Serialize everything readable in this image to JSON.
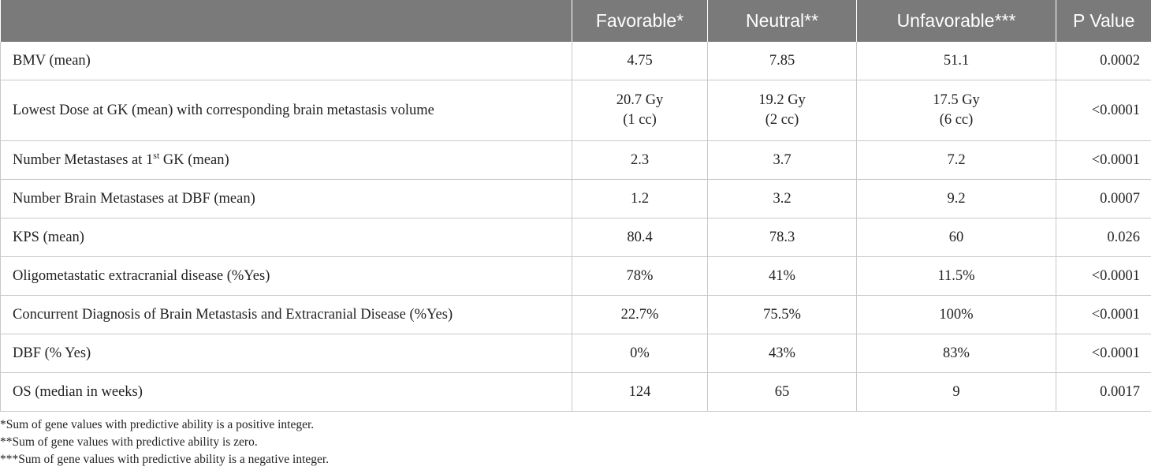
{
  "headers": [
    "",
    "Favorable*",
    "Neutral**",
    "Unfavorable***",
    "P Value"
  ],
  "rows": [
    {
      "label": "BMV (mean)",
      "favorable": "4.75",
      "neutral": "7.85",
      "unfavorable": "51.1",
      "p": "0.0002"
    },
    {
      "label": "Lowest Dose at GK (mean) with corresponding brain metastasis volume",
      "favorable": "20.7 Gy",
      "favorable_sub": "(1 cc)",
      "neutral": "19.2 Gy",
      "neutral_sub": "(2 cc)",
      "unfavorable": "17.5 Gy",
      "unfavorable_sub": "(6 cc)",
      "p": "<0.0001"
    },
    {
      "label_pre": "Number Metastases at 1",
      "label_sup": "st",
      "label_post": " GK (mean)",
      "favorable": "2.3",
      "neutral": "3.7",
      "unfavorable": "7.2",
      "p": "<0.0001"
    },
    {
      "label": "Number Brain Metastases at DBF (mean)",
      "favorable": "1.2",
      "neutral": "3.2",
      "unfavorable": "9.2",
      "p": "0.0007"
    },
    {
      "label": "KPS (mean)",
      "favorable": "80.4",
      "neutral": "78.3",
      "unfavorable": "60",
      "p": "0.026"
    },
    {
      "label": "Oligometastatic extracranial disease (%Yes)",
      "favorable": "78%",
      "neutral": "41%",
      "unfavorable": "11.5%",
      "p": "<0.0001"
    },
    {
      "label": "Concurrent Diagnosis of Brain Metastasis and Extracranial Disease (%Yes)",
      "favorable": "22.7%",
      "neutral": "75.5%",
      "unfavorable": "100%",
      "p": "<0.0001"
    },
    {
      "label": "DBF (% Yes)",
      "favorable": "0%",
      "neutral": "43%",
      "unfavorable": "83%",
      "p": "<0.0001"
    },
    {
      "label": "OS (median in weeks)",
      "favorable": "124",
      "neutral": "65",
      "unfavorable": "9",
      "p": "0.0017"
    }
  ],
  "footnotes": [
    "*Sum of gene values with predictive ability is a positive integer.",
    "**Sum of gene values with predictive ability is zero.",
    "***Sum of gene values with predictive ability is a negative integer."
  ],
  "colors": {
    "header_bg": "#7a7a7a",
    "header_text": "#ffffff",
    "grid": "#c8c8c8"
  }
}
